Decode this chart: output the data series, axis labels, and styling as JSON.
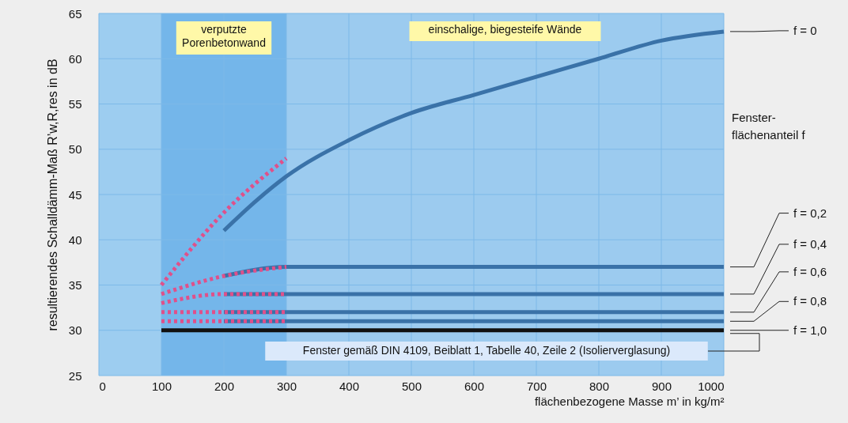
{
  "chart_data": {
    "type": "line",
    "xlabel": "flächenbezogene Masse m’ in kg/m²",
    "ylabel": "resultierendes Schalldämm-Maß R’w,R,res in dB",
    "xlim": [
      0,
      1000
    ],
    "ylim": [
      25,
      65
    ],
    "xticks": [
      0,
      100,
      200,
      300,
      400,
      500,
      600,
      700,
      800,
      900,
      1000
    ],
    "yticks": [
      25,
      30,
      35,
      40,
      45,
      50,
      55,
      60,
      65
    ],
    "grid": true,
    "bands": [
      {
        "axis": "x",
        "from": 0,
        "to": 100,
        "color": "#9dcdf0"
      },
      {
        "axis": "x",
        "from": 100,
        "to": 300,
        "label": "verputzte\nPorenbetonwand",
        "color": "#74b6ea"
      },
      {
        "axis": "x",
        "from": 300,
        "to": 1000,
        "label": "einschalige, biegesteife Wände",
        "color": "#9ccbef"
      }
    ],
    "series": [
      {
        "name": "f = 0",
        "color": "#3a72a8",
        "x": [
          200,
          250,
          300,
          400,
          500,
          600,
          700,
          800,
          900,
          1000
        ],
        "values": [
          41,
          44.2,
          47,
          51,
          54,
          56,
          58,
          60,
          62,
          63
        ]
      },
      {
        "color": "#e0508a",
        "line_style": "dotted",
        "x": [
          100,
          200,
          300
        ],
        "values": [
          35,
          43,
          49
        ]
      },
      {
        "name": "f = 0,2",
        "color": "#3a72a8",
        "x": [
          200,
          300,
          1000
        ],
        "values": [
          36,
          37,
          37
        ]
      },
      {
        "color": "#e0508a",
        "line_style": "dotted",
        "x": [
          100,
          200,
          300
        ],
        "values": [
          34,
          36,
          37
        ]
      },
      {
        "name": "f = 0,4",
        "color": "#3a72a8",
        "x": [
          200,
          1000
        ],
        "values": [
          34,
          34
        ]
      },
      {
        "color": "#e0508a",
        "line_style": "dotted",
        "x": [
          100,
          200,
          300
        ],
        "values": [
          33,
          34,
          34
        ]
      },
      {
        "name": "f = 0,6",
        "color": "#3a72a8",
        "x": [
          200,
          1000
        ],
        "values": [
          32,
          32
        ]
      },
      {
        "color": "#e0508a",
        "line_style": "dotted",
        "x": [
          100,
          300
        ],
        "values": [
          32,
          32
        ]
      },
      {
        "name": "f = 0,8",
        "color": "#3a72a8",
        "x": [
          200,
          1000
        ],
        "values": [
          31,
          31
        ]
      },
      {
        "color": "#e0508a",
        "line_style": "dotted",
        "x": [
          100,
          300
        ],
        "values": [
          31,
          31
        ]
      },
      {
        "name": "f = 1,0",
        "color": "#111111",
        "x": [
          100,
          1000
        ],
        "values": [
          30,
          30
        ]
      }
    ],
    "annotations": [
      "Fenster-\nflächenanteil f",
      "Fenster gemäß DIN 4109, Beiblatt 1, Tabelle 40, Zeile 2 (Isolierverglasung)"
    ]
  }
}
